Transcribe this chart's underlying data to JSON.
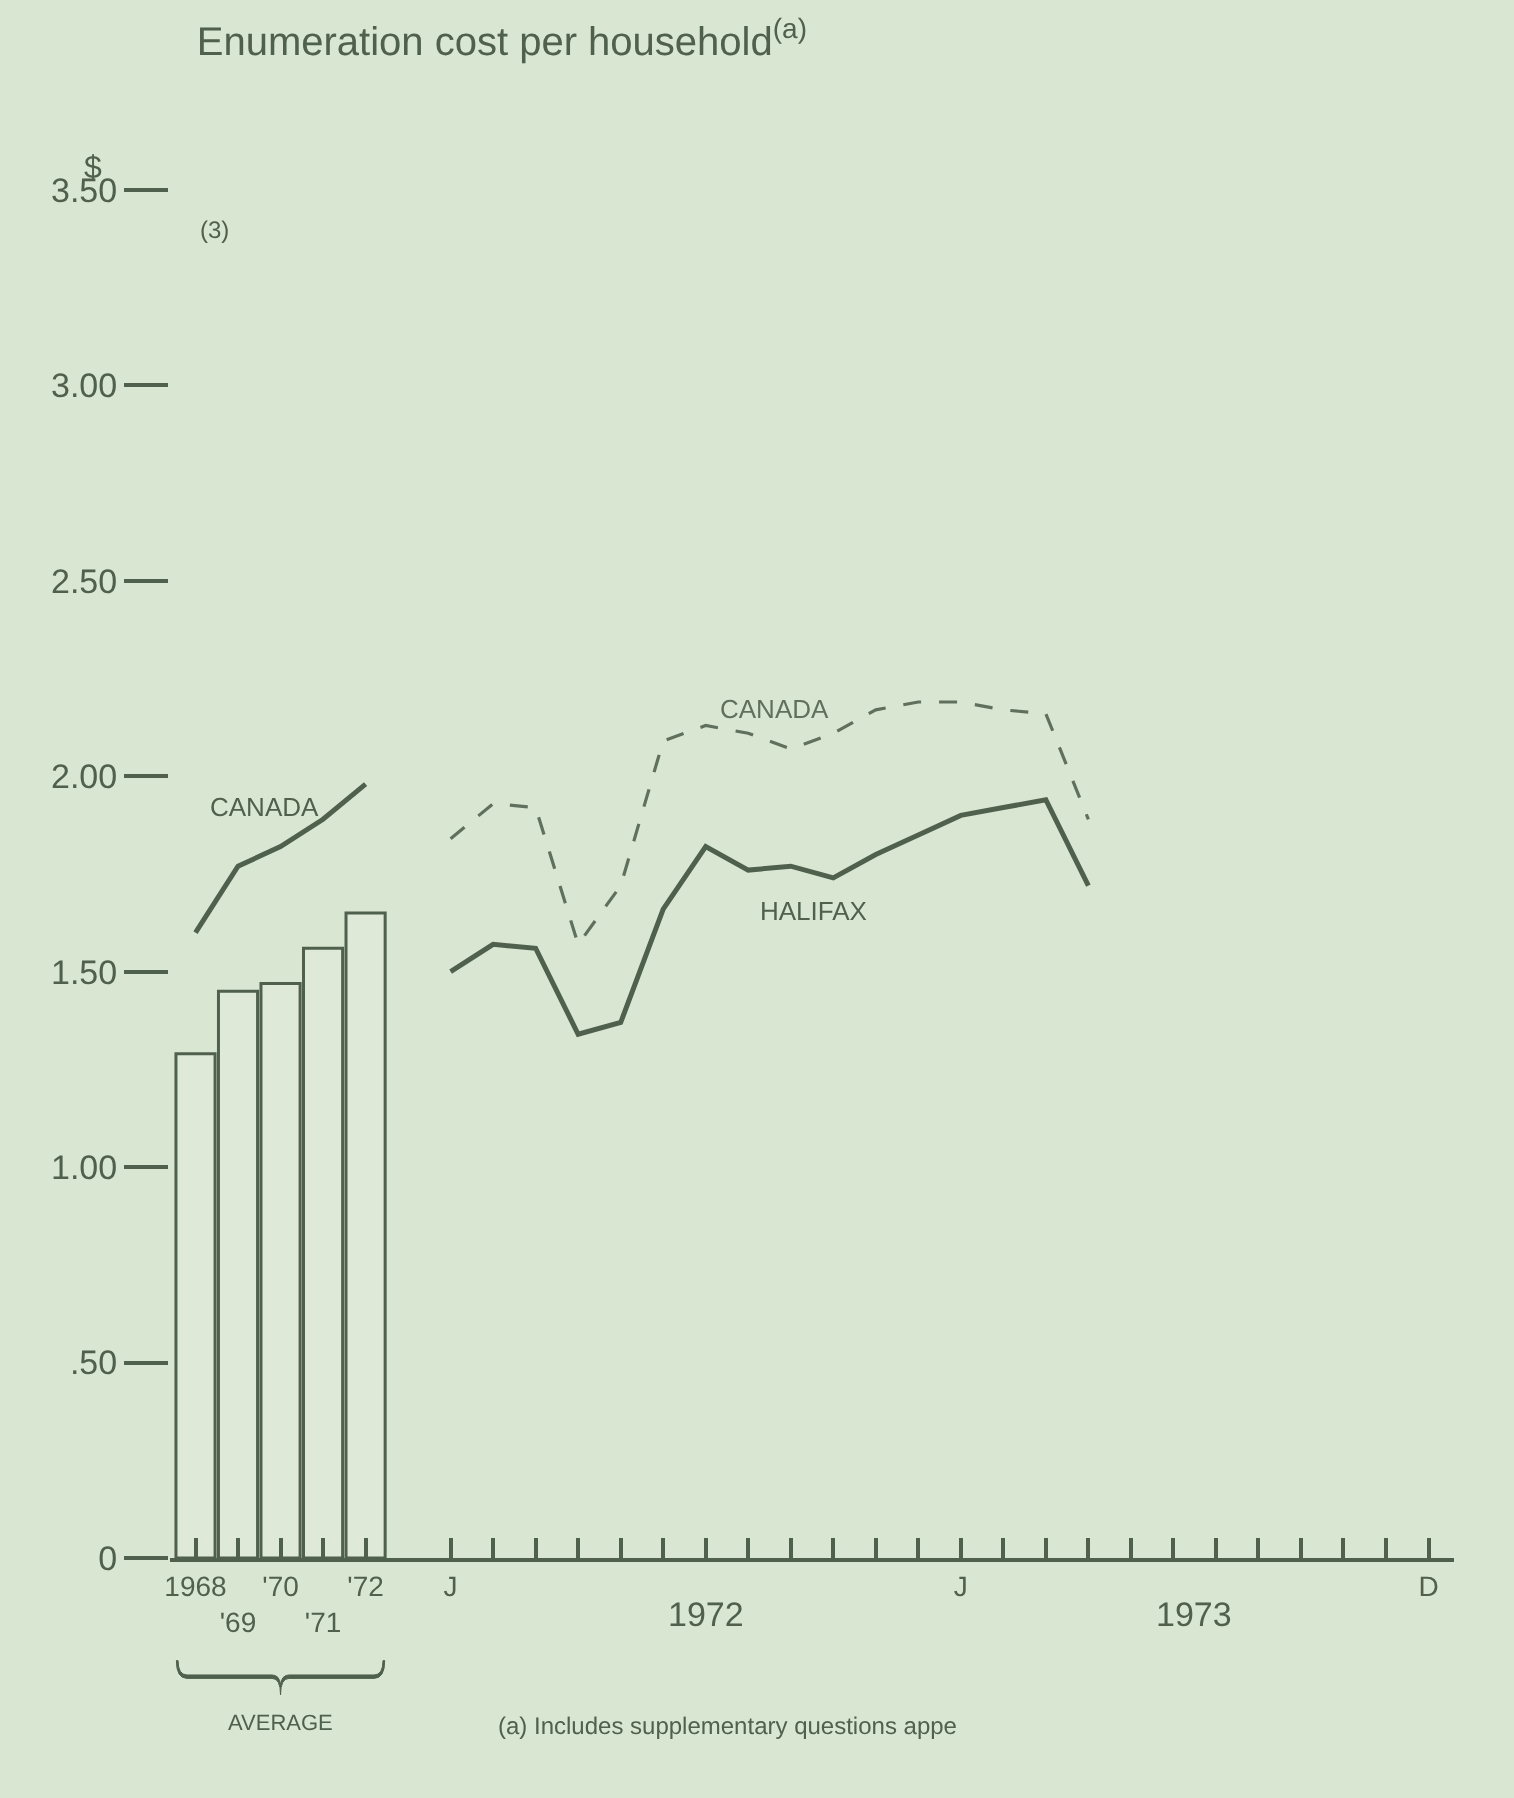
{
  "chart_data": {
    "type": "bar",
    "title": "Enumeration cost per household$^{(a)}$",
    "ylabel": "$",
    "categories": [
      "1968",
      "'69",
      "'70",
      "'71",
      "'72",
      null,
      "J",
      null,
      null,
      null,
      null,
      null,
      null,
      null,
      null,
      null,
      null,
      null,
      "J",
      null,
      null,
      null,
      null,
      null,
      null,
      null,
      null,
      null,
      null,
      "D"
    ],
    "series": [
      {
        "color": "#dfe9d8",
        "values": [
          1.29,
          1.45,
          1.47,
          1.56,
          1.65,
          null,
          null,
          null,
          null,
          null,
          null,
          null,
          null,
          null,
          null,
          null,
          null,
          null,
          null,
          null,
          null,
          null,
          null,
          null,
          null,
          null,
          null,
          null,
          null,
          null
        ]
      },
      {
        "type": "line",
        "name": "CANADA",
        "color": "#4f604d",
        "line_style": "solid",
        "values": [
          1.6,
          1.77,
          1.82,
          1.89,
          1.98,
          null,
          null,
          null,
          null,
          null,
          null,
          null,
          null,
          null,
          null,
          null,
          null,
          null,
          null,
          null,
          null,
          null,
          null,
          null,
          null,
          null,
          null,
          null,
          null,
          null
        ]
      },
      {
        "type": "line",
        "name": "CANADA",
        "color": "#5f705d",
        "line_style": "dashed",
        "values": [
          null,
          null,
          null,
          null,
          null,
          null,
          1.84,
          1.93,
          1.92,
          1.57,
          1.72,
          2.09,
          2.13,
          2.11,
          2.07,
          2.11,
          2.17,
          2.19,
          2.19,
          2.17,
          2.16,
          1.89,
          null,
          null,
          null,
          null,
          null,
          null,
          null,
          null
        ]
      },
      {
        "type": "line",
        "name": "HALIFAX",
        "color": "#4f604d",
        "line_style": "solid",
        "values": [
          null,
          null,
          null,
          null,
          null,
          null,
          1.5,
          1.57,
          1.56,
          1.34,
          1.37,
          1.66,
          1.82,
          1.76,
          1.77,
          1.74,
          1.8,
          1.85,
          1.9,
          1.92,
          1.94,
          1.72,
          null,
          null,
          null,
          null,
          null,
          null,
          null,
          null
        ]
      }
    ],
    "ylim": [
      0,
      3.5
    ],
    "yticks": [
      0,
      {
        "value": 0.5,
        "label": ".50"
      },
      {
        "value": 1,
        "label": "1.00"
      },
      {
        "value": 1.5,
        "label": "1.50"
      },
      {
        "value": 2,
        "label": "2.00"
      },
      {
        "value": 2.5,
        "label": "2.50"
      },
      {
        "value": 3,
        "label": "3.00"
      },
      {
        "value": 3.5,
        "label": "3.50"
      }
    ],
    "grid": false,
    "legend": false,
    "marker": "none",
    "annotations": [
      "(3)",
      "1972",
      "1973",
      "AVERAGE",
      "(a) Includes supplementary questions appe"
    ]
  }
}
